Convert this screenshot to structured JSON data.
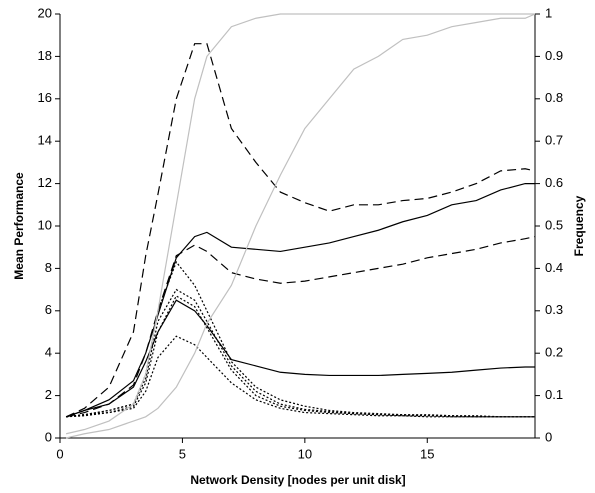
{
  "chart_data": {
    "type": "line",
    "x_label": "Network Density [nodes per unit disk]",
    "y_label": "Mean Performance",
    "y2_label": "Frequency",
    "x": [
      0.25,
      1,
      2,
      3,
      3.5,
      4,
      4.75,
      5.5,
      6,
      7,
      8,
      9,
      10,
      11,
      12,
      13,
      14,
      15,
      16,
      17,
      18,
      19,
      19.4
    ],
    "xlim": [
      0,
      19.4
    ],
    "xticks": [
      0,
      5,
      10,
      15
    ],
    "ylim": [
      0,
      20
    ],
    "yticks": [
      0,
      2,
      4,
      6,
      8,
      10,
      12,
      14,
      16,
      18,
      20
    ],
    "y2lim": [
      0,
      1
    ],
    "y2ticks": [
      0,
      0.1,
      0.2,
      0.3,
      0.4,
      0.5,
      0.6,
      0.7,
      0.8,
      0.9,
      1
    ],
    "grid": false,
    "series": [
      {
        "color": "#000000",
        "dash": "9,5",
        "values": [
          1,
          1.4,
          2.4,
          5,
          8.6,
          11.5,
          16,
          18.6,
          18.6,
          14.6,
          13,
          11.6,
          11.1,
          10.7,
          11,
          11,
          11.2,
          11.3,
          11.6,
          12,
          12.6,
          12.7,
          12.6
        ]
      },
      {
        "color": "#000000",
        "dash": "none",
        "values": [
          1,
          1.3,
          1.8,
          2.7,
          4,
          5.8,
          8.5,
          9.5,
          9.7,
          9,
          8.9,
          8.8,
          9,
          9.2,
          9.5,
          9.8,
          10.2,
          10.5,
          11,
          11.2,
          11.7,
          12,
          12
        ]
      },
      {
        "color": "#000000",
        "dash": "9,5",
        "values": [
          1,
          1.2,
          1.6,
          2.5,
          4,
          6,
          8.6,
          9.1,
          8.8,
          7.8,
          7.5,
          7.3,
          7.4,
          7.6,
          7.8,
          8,
          8.2,
          8.5,
          8.7,
          8.9,
          9.2,
          9.4,
          9.5
        ]
      },
      {
        "color": "#000000",
        "dash": "none",
        "values": [
          1,
          1.3,
          1.6,
          2.4,
          3.6,
          5,
          6.5,
          6,
          5.3,
          3.7,
          3.4,
          3.1,
          3,
          2.95,
          2.95,
          2.95,
          3,
          3.05,
          3.1,
          3.2,
          3.3,
          3.35,
          3.35
        ]
      },
      {
        "color": "#000000",
        "dash": "2,2",
        "values": [
          1,
          1.1,
          1.3,
          1.6,
          3,
          6,
          8.3,
          7.2,
          6,
          3.6,
          2.4,
          1.8,
          1.5,
          1.3,
          1.2,
          1.15,
          1.1,
          1.1,
          1.05,
          1.05,
          1,
          1,
          1
        ]
      },
      {
        "color": "#000000",
        "dash": "2,2",
        "values": [
          1,
          1.1,
          1.3,
          1.6,
          2.8,
          5.5,
          7,
          6.5,
          5.5,
          3.4,
          2.2,
          1.6,
          1.35,
          1.25,
          1.15,
          1.1,
          1.1,
          1.05,
          1.05,
          1,
          1,
          1,
          1
        ]
      },
      {
        "color": "#000000",
        "dash": "2,2",
        "values": [
          1,
          1.1,
          1.2,
          1.5,
          2.6,
          5,
          6.7,
          6.2,
          5.2,
          3.2,
          2,
          1.5,
          1.3,
          1.2,
          1.15,
          1.1,
          1.05,
          1.05,
          1,
          1,
          1,
          1,
          1
        ]
      },
      {
        "color": "#000000",
        "dash": "2,2",
        "values": [
          1,
          1.05,
          1.2,
          1.4,
          2.2,
          3.8,
          4.8,
          4.4,
          3.8,
          2.6,
          1.8,
          1.4,
          1.2,
          1.15,
          1.1,
          1.05,
          1.05,
          1,
          1,
          1,
          1,
          1,
          1
        ]
      },
      {
        "color": "#c0c0c0",
        "dash": "none",
        "axis": "y2",
        "values": [
          0.01,
          0.02,
          0.04,
          0.08,
          0.15,
          0.3,
          0.55,
          0.8,
          0.9,
          0.97,
          0.99,
          1,
          1,
          1,
          1,
          1,
          1,
          1,
          1,
          1,
          1,
          1,
          1
        ]
      },
      {
        "color": "#c0c0c0",
        "dash": "none",
        "axis": "y2",
        "values": [
          0,
          0.01,
          0.02,
          0.04,
          0.05,
          0.07,
          0.12,
          0.2,
          0.27,
          0.36,
          0.5,
          0.62,
          0.73,
          0.8,
          0.87,
          0.9,
          0.94,
          0.95,
          0.97,
          0.98,
          0.99,
          0.99,
          1
        ]
      }
    ]
  }
}
